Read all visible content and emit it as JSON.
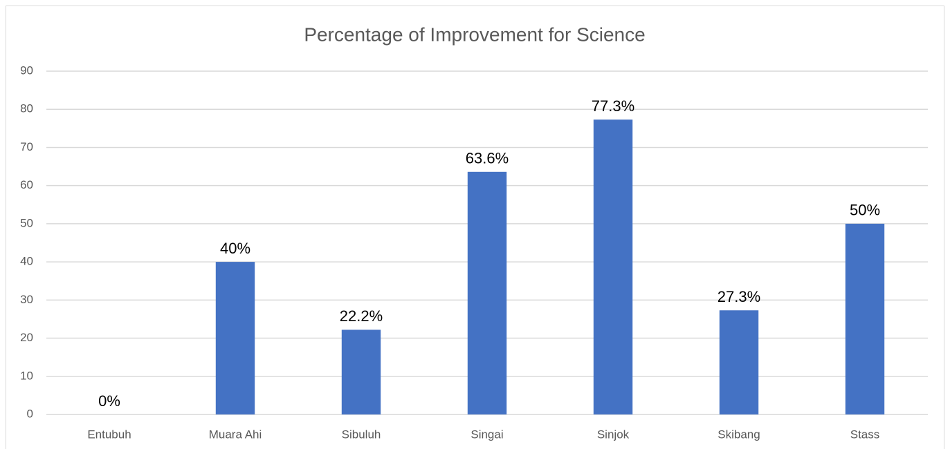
{
  "chart_data": {
    "type": "bar",
    "title": "Percentage of Improvement for Science",
    "categories": [
      "Entubuh",
      "Muara Ahi",
      "Sibuluh",
      "Singai",
      "Sinjok",
      "Skibang",
      "Stass"
    ],
    "values": [
      0,
      40,
      22.2,
      63.6,
      77.3,
      27.3,
      50
    ],
    "value_labels": [
      "0%",
      "40%",
      "22.2%",
      "63.6%",
      "77.3%",
      "27.3%",
      "50%"
    ],
    "color": "#4472c4",
    "ylim": [
      0,
      90
    ],
    "yticks": [
      0,
      10,
      20,
      30,
      40,
      50,
      60,
      70,
      80,
      90
    ],
    "grid": true
  }
}
